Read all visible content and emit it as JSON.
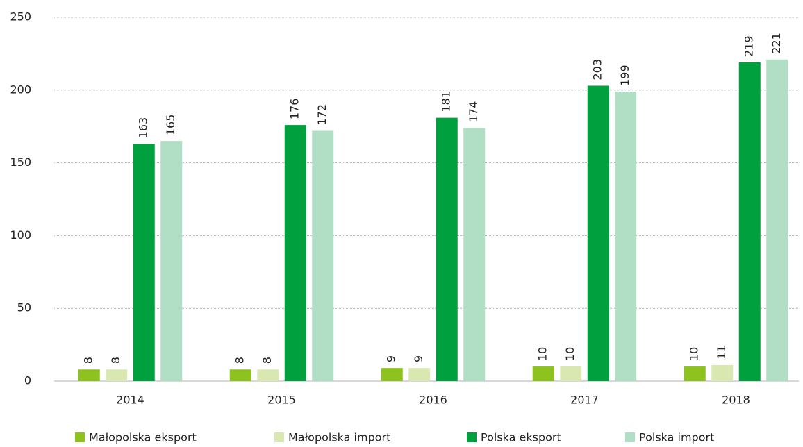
{
  "chart_data": {
    "type": "bar",
    "categories": [
      "2014",
      "2015",
      "2016",
      "2017",
      "2018"
    ],
    "series": [
      {
        "name": "Małopolska eksport",
        "color": "#8dc21f",
        "values": [
          8,
          8,
          9,
          10,
          10
        ]
      },
      {
        "name": "Małopolska import",
        "color": "#d9e8b0",
        "values": [
          8,
          8,
          9,
          10,
          11
        ]
      },
      {
        "name": "Polska eksport",
        "color": "#00a03e",
        "values": [
          163,
          176,
          181,
          203,
          219
        ]
      },
      {
        "name": "Polska import",
        "color": "#b1dfc5",
        "values": [
          165,
          172,
          174,
          199,
          221
        ]
      }
    ],
    "ylim": [
      0,
      250
    ],
    "yticks": [
      0,
      50,
      100,
      150,
      200,
      250
    ],
    "grid": true
  }
}
